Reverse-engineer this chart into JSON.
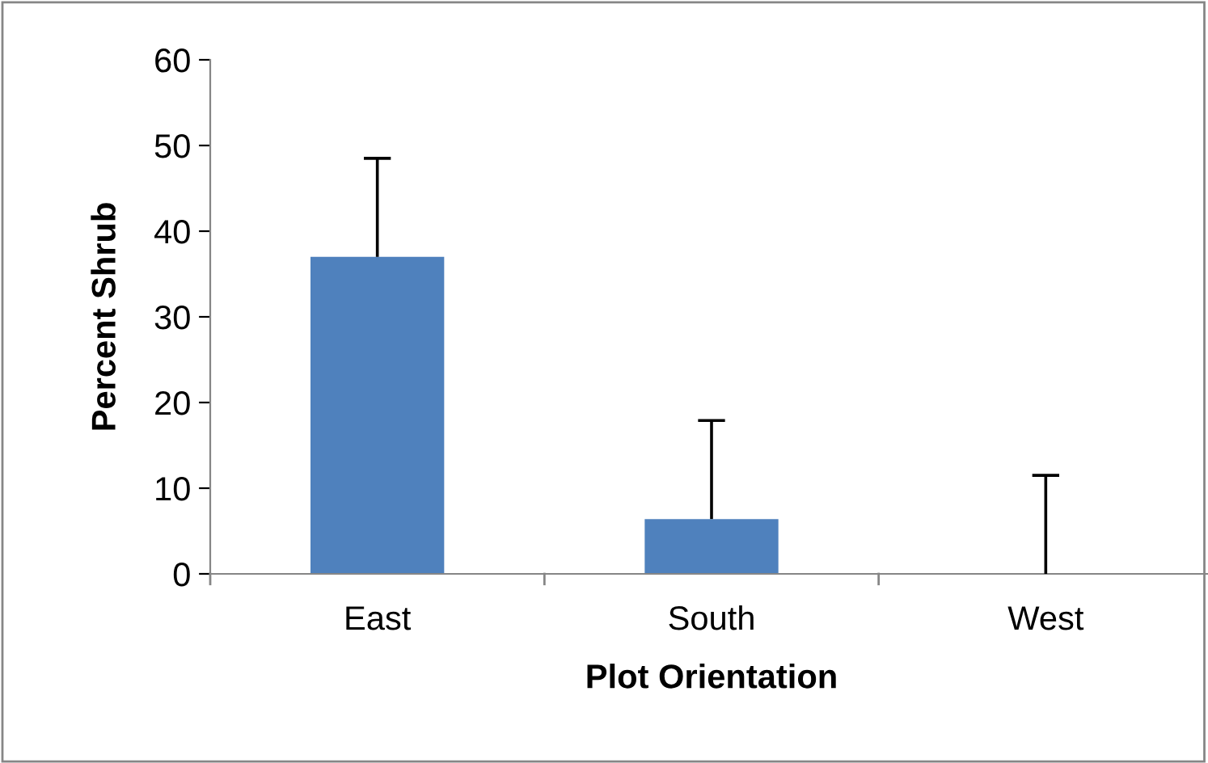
{
  "chart_data": {
    "type": "bar",
    "xlabel": "Plot Orientation",
    "ylabel": "Percent Shrub",
    "categories": [
      "East",
      "South",
      "West"
    ],
    "values": [
      37.0,
      6.4,
      0
    ],
    "errors": [
      [
        37.0,
        48.5
      ],
      [
        6.4,
        17.9
      ],
      [
        0,
        11.5
      ]
    ],
    "color": "#4f81bd",
    "ylim": [
      0,
      60
    ],
    "yticks": [
      0,
      10,
      20,
      30,
      40,
      50,
      60
    ],
    "grid": false,
    "legend": false
  }
}
